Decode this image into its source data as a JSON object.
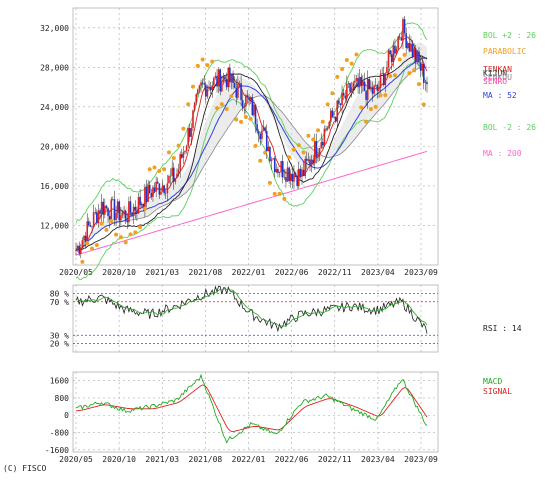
{
  "copyright": "(C) FISCO",
  "chart_data": [
    {
      "type": "line",
      "name": "price",
      "x_ticks": [
        "2020/05",
        "2020/10",
        "2021/03",
        "2021/08",
        "2022/01",
        "2022/06",
        "2022/11",
        "2023/04",
        "2023/09"
      ],
      "y_ticks": [
        12000,
        16000,
        20000,
        24000,
        28000,
        32000
      ],
      "ylim": [
        8000,
        34000
      ],
      "grid": true,
      "legend": [
        {
          "label": "BOL +2 : 26",
          "color": "#5fcf5f"
        },
        {
          "label": "PARABOLIC",
          "color": "#f0a020"
        },
        {
          "label": "TENKAN",
          "color": "#dd2222"
        },
        {
          "label": "KIJUN",
          "color": "#333333"
        },
        {
          "label": "SENKOU",
          "color": "#888888"
        },
        {
          "label": "SENRO",
          "color": "#ff44aa"
        },
        {
          "label": "MA : 52",
          "color": "#3344dd"
        },
        {
          "label": "BOL -2 : 26",
          "color": "#5fcf5f"
        },
        {
          "label": "MA : 200",
          "color": "#ff66cc"
        }
      ],
      "series": [
        {
          "x": [
            0,
            3,
            6,
            9,
            12,
            15,
            18,
            21,
            24,
            27,
            30,
            33,
            36,
            39,
            42
          ],
          "close": [
            9500,
            14000,
            13000,
            15500,
            17000,
            26000,
            27000,
            24000,
            18000,
            17000,
            22000,
            26000,
            25500,
            32000,
            26500
          ]
        }
      ]
    },
    {
      "type": "line",
      "name": "rsi",
      "y_ticks": [
        20,
        30,
        70,
        80
      ],
      "ylim": [
        10,
        90
      ],
      "legend": [
        {
          "label": "RSI : 14",
          "color": "#222222"
        }
      ],
      "values": [
        70,
        75,
        60,
        55,
        65,
        78,
        85,
        55,
        40,
        55,
        60,
        65,
        60,
        70,
        35
      ]
    },
    {
      "type": "line",
      "name": "macd",
      "y_ticks": [
        -1600,
        -800,
        0,
        800,
        1600
      ],
      "ylim": [
        -1700,
        2000
      ],
      "legend": [
        {
          "label": "MACD",
          "color": "#22aa22"
        },
        {
          "label": "SIGNAL",
          "color": "#dd2222"
        }
      ],
      "macd": [
        300,
        600,
        200,
        400,
        700,
        1800,
        -1200,
        -400,
        -900,
        600,
        900,
        300,
        -200,
        1700,
        -500
      ],
      "signal": [
        200,
        500,
        300,
        300,
        600,
        1500,
        -800,
        -500,
        -700,
        400,
        800,
        400,
        -100,
        1400,
        -300
      ]
    }
  ]
}
